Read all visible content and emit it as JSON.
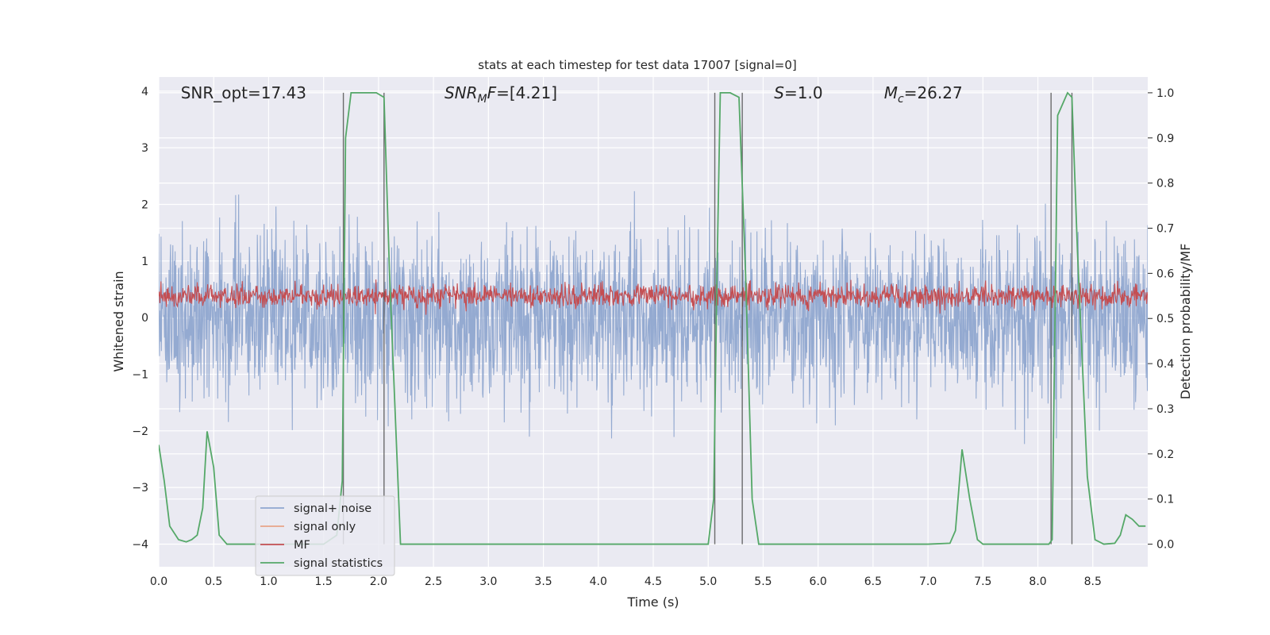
{
  "chart_data": {
    "type": "line",
    "title": "stats at each timestep for test data 17007 [signal=0]",
    "xlabel": "Time (s)",
    "ylabel": "Whitened strain",
    "ylabel_right": "Detection probability/MF",
    "xlim": [
      0,
      9
    ],
    "ylim": [
      -4.4,
      4.25
    ],
    "ylim_right": [
      -0.05,
      1.035
    ],
    "xticks": [
      0.0,
      0.5,
      1.0,
      1.5,
      2.0,
      2.5,
      3.0,
      3.5,
      4.0,
      4.5,
      5.0,
      5.5,
      6.0,
      6.5,
      7.0,
      7.5,
      8.0,
      8.5
    ],
    "xtick_labels": [
      "0.0",
      "0.5",
      "1.0",
      "1.5",
      "2.0",
      "2.5",
      "3.0",
      "3.5",
      "4.0",
      "4.5",
      "5.0",
      "5.5",
      "6.0",
      "6.5",
      "7.0",
      "7.5",
      "8.0",
      "8.5"
    ],
    "yticks": [
      -4,
      -3,
      -2,
      -1,
      0,
      1,
      2,
      3,
      4
    ],
    "ytick_labels": [
      "−4",
      "−3",
      "−2",
      "−1",
      "0",
      "1",
      "2",
      "3",
      "4"
    ],
    "yticks_right": [
      0.0,
      0.1,
      0.2,
      0.3,
      0.4,
      0.5,
      0.6,
      0.7,
      0.8,
      0.9,
      1.0
    ],
    "ytick_labels_right": [
      "0.0",
      "0.1",
      "0.2",
      "0.3",
      "0.4",
      "0.5",
      "0.6",
      "0.7",
      "0.8",
      "0.9",
      "1.0"
    ],
    "grid": true,
    "legend_position": "lower-left",
    "annotations": [
      {
        "text": "SNR_opt=17.43",
        "x": 0.2
      },
      {
        "text": "SNR_MF=[4.21]",
        "x": 2.6,
        "math": "snrmf"
      },
      {
        "text": "S=1.0",
        "x": 5.6,
        "math": "s"
      },
      {
        "text": "M_c=26.27",
        "x": 6.6,
        "math": "mc"
      }
    ],
    "vlines": [
      1.68,
      2.05,
      5.06,
      5.31,
      8.12,
      8.31
    ],
    "series": [
      {
        "name": "signal+ noise",
        "color": "#8fa6cf",
        "axis": "left",
        "style": "noise",
        "amplitude_range": [
          -3.5,
          3.3
        ]
      },
      {
        "name": "signal only",
        "color": "#e8a488",
        "axis": "left",
        "style": "flat",
        "values": []
      },
      {
        "name": "MF",
        "color": "#c44e52",
        "axis": "right",
        "style": "noise",
        "center": 0.55,
        "amplitude_range": [
          0.5,
          0.62
        ]
      },
      {
        "name": "signal statistics",
        "color": "#55a868",
        "axis": "right",
        "x": [
          0.0,
          0.05,
          0.1,
          0.18,
          0.25,
          0.3,
          0.35,
          0.4,
          0.44,
          0.5,
          0.55,
          0.62,
          0.7,
          1.0,
          1.5,
          1.62,
          1.67,
          1.7,
          1.75,
          1.98,
          2.05,
          2.1,
          2.2,
          3.0,
          4.0,
          5.0,
          5.05,
          5.08,
          5.11,
          5.2,
          5.28,
          5.34,
          5.4,
          5.46,
          5.6,
          7.0,
          7.2,
          7.25,
          7.31,
          7.38,
          7.45,
          7.5,
          7.6,
          8.0,
          8.1,
          8.13,
          8.18,
          8.27,
          8.31,
          8.36,
          8.45,
          8.52,
          8.6,
          8.7,
          8.75,
          8.8,
          8.86,
          8.92,
          8.98
        ],
        "values": [
          0.22,
          0.14,
          0.04,
          0.01,
          0.005,
          0.01,
          0.02,
          0.08,
          0.25,
          0.17,
          0.02,
          0.0,
          0.0,
          0.0,
          0.0,
          0.02,
          0.14,
          0.9,
          1.0,
          1.0,
          0.99,
          0.6,
          0.0,
          0.0,
          0.0,
          0.0,
          0.1,
          0.6,
          1.0,
          1.0,
          0.99,
          0.6,
          0.1,
          0.0,
          0.0,
          0.0,
          0.002,
          0.03,
          0.21,
          0.1,
          0.01,
          0.0,
          0.0,
          0.0,
          0.0,
          0.01,
          0.95,
          1.0,
          0.99,
          0.65,
          0.15,
          0.01,
          0.0,
          0.002,
          0.02,
          0.065,
          0.055,
          0.04,
          0.04
        ]
      }
    ]
  }
}
